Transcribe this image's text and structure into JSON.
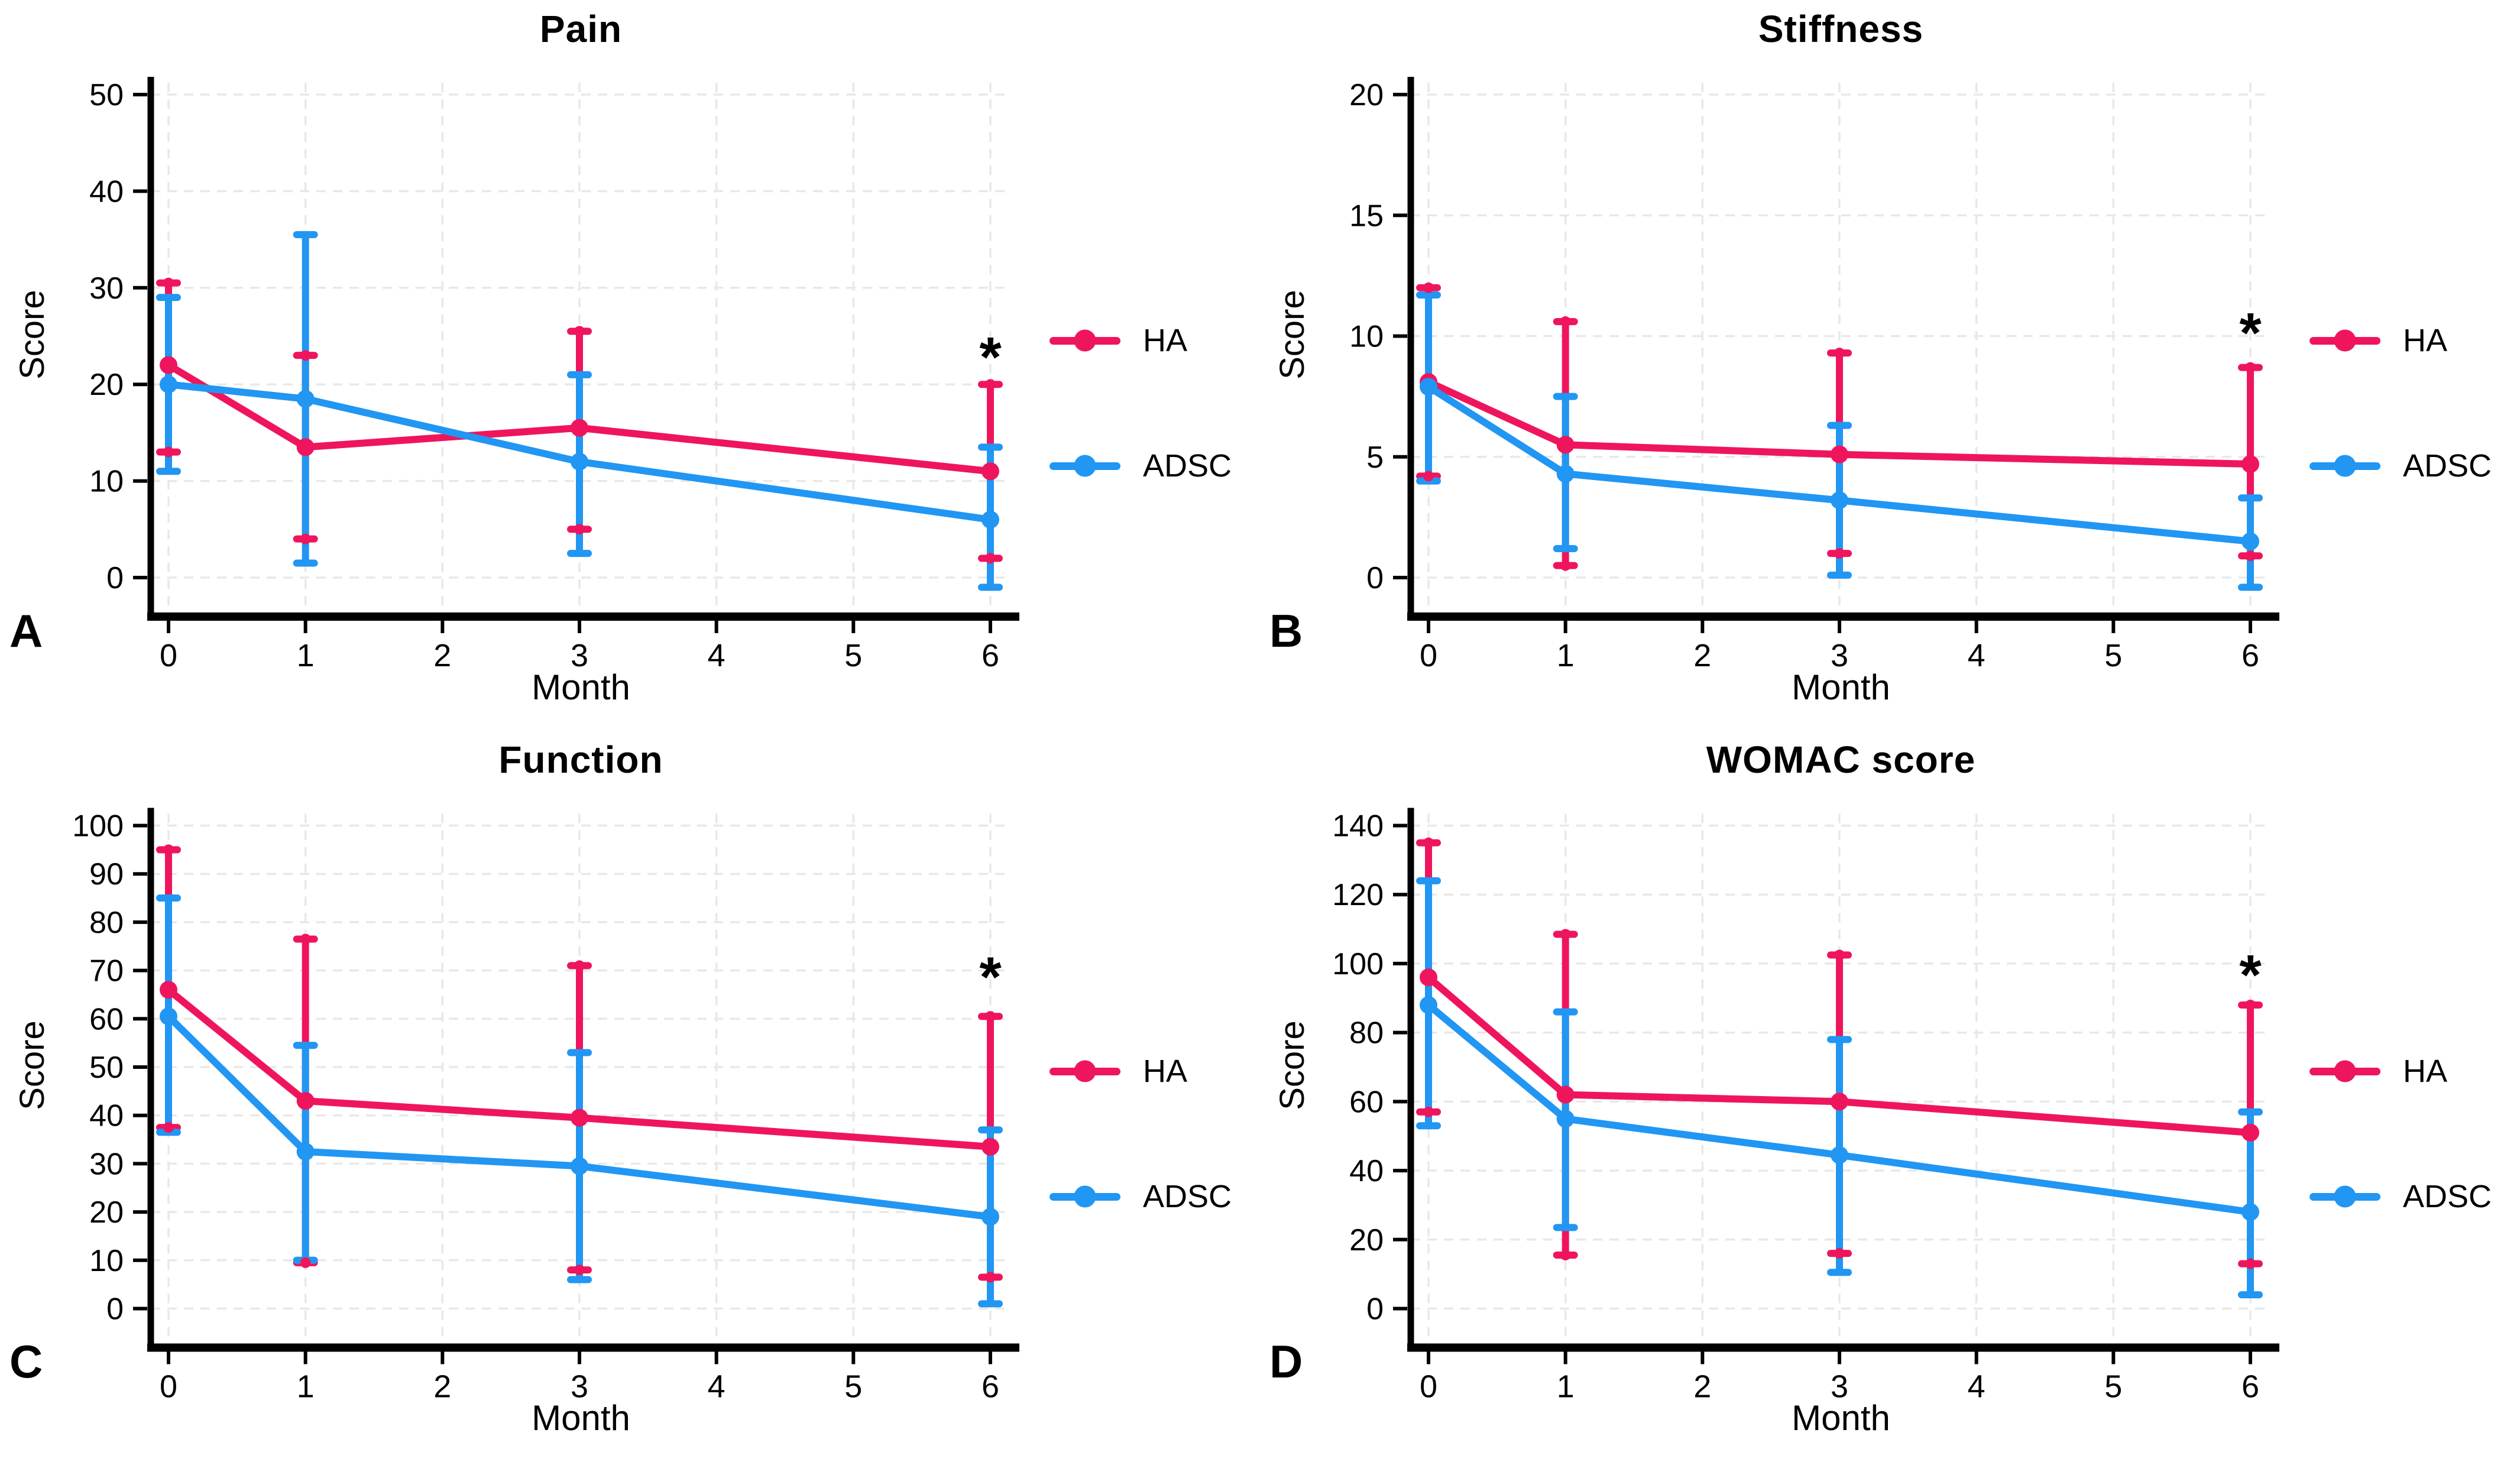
{
  "style": {
    "ha_color": "#EF155D",
    "adsc_color": "#2196F3",
    "asterisk_color": "#FA5214",
    "grid_color": "#E8E8E8",
    "axis_color": "#000000",
    "background": "#FFFFFF"
  },
  "chart_data": [
    {
      "type": "line",
      "letter": "A",
      "title": "Pain",
      "xlabel": "Month",
      "ylabel": "Score",
      "x": [
        0,
        1,
        3,
        6
      ],
      "x_ticks": [
        0,
        1,
        2,
        3,
        4,
        5,
        6
      ],
      "y_ticks": [
        0,
        10,
        20,
        30,
        40,
        50
      ],
      "ylim": [
        0,
        50
      ],
      "grid": true,
      "legend_position": "right",
      "significance": {
        "x": 6,
        "y": 24,
        "label": "*"
      },
      "series": [
        {
          "name": "HA",
          "color": "#EF155D",
          "means": [
            22,
            13.5,
            15.5,
            11
          ],
          "lower": [
            13,
            4,
            5,
            2
          ],
          "upper": [
            30.5,
            23,
            25.5,
            20
          ]
        },
        {
          "name": "ADSC",
          "color": "#2196F3",
          "means": [
            20,
            18.5,
            12,
            6
          ],
          "lower": [
            11,
            1.5,
            2.5,
            -1
          ],
          "upper": [
            29,
            35.5,
            21,
            13.5
          ]
        }
      ]
    },
    {
      "type": "line",
      "letter": "B",
      "title": "Stiffness",
      "xlabel": "Month",
      "ylabel": "Score",
      "x": [
        0,
        1,
        3,
        6
      ],
      "x_ticks": [
        0,
        1,
        2,
        3,
        4,
        5,
        6
      ],
      "y_ticks": [
        0,
        5,
        10,
        15,
        20
      ],
      "ylim": [
        0,
        20
      ],
      "grid": true,
      "legend_position": "right",
      "significance": {
        "x": 6,
        "y": 10.6,
        "label": "*"
      },
      "series": [
        {
          "name": "HA",
          "color": "#EF155D",
          "means": [
            8.1,
            5.5,
            5.1,
            4.7
          ],
          "lower": [
            4.2,
            0.5,
            1,
            0.9
          ],
          "upper": [
            12,
            10.6,
            9.3,
            8.7
          ]
        },
        {
          "name": "ADSC",
          "color": "#2196F3",
          "means": [
            7.9,
            4.3,
            3.2,
            1.5
          ],
          "lower": [
            4,
            1.2,
            0.1,
            -0.4
          ],
          "upper": [
            11.7,
            7.5,
            6.3,
            3.3
          ]
        }
      ]
    },
    {
      "type": "line",
      "letter": "C",
      "title": "Function",
      "xlabel": "Month",
      "ylabel": "Score",
      "x": [
        0,
        1,
        3,
        6
      ],
      "x_ticks": [
        0,
        1,
        2,
        3,
        4,
        5,
        6
      ],
      "y_ticks": [
        0,
        10,
        20,
        30,
        40,
        50,
        60,
        70,
        80,
        90,
        100
      ],
      "ylim": [
        0,
        100
      ],
      "grid": true,
      "legend_position": "right",
      "significance": {
        "x": 6,
        "y": 71,
        "label": "*"
      },
      "series": [
        {
          "name": "HA",
          "color": "#EF155D",
          "means": [
            66,
            43,
            39.5,
            33.5
          ],
          "lower": [
            37.5,
            9.5,
            8,
            6.5
          ],
          "upper": [
            95,
            76.5,
            71,
            60.5
          ]
        },
        {
          "name": "ADSC",
          "color": "#2196F3",
          "means": [
            60.5,
            32.5,
            29.5,
            19
          ],
          "lower": [
            36.5,
            10,
            6,
            1
          ],
          "upper": [
            85,
            54.5,
            53,
            37
          ]
        }
      ]
    },
    {
      "type": "line",
      "letter": "D",
      "title": "WOMAC score",
      "xlabel": "Month",
      "ylabel": "Score",
      "x": [
        0,
        1,
        3,
        6
      ],
      "x_ticks": [
        0,
        1,
        2,
        3,
        4,
        5,
        6
      ],
      "y_ticks": [
        0,
        20,
        40,
        60,
        80,
        100,
        120,
        140
      ],
      "ylim": [
        0,
        140
      ],
      "grid": true,
      "legend_position": "right",
      "significance": {
        "x": 6,
        "y": 100,
        "label": "*"
      },
      "series": [
        {
          "name": "HA",
          "color": "#EF155D",
          "means": [
            96,
            62,
            60,
            51
          ],
          "lower": [
            57,
            15.5,
            16,
            13
          ],
          "upper": [
            135,
            108.5,
            102.5,
            88
          ]
        },
        {
          "name": "ADSC",
          "color": "#2196F3",
          "means": [
            88,
            55,
            44.5,
            28
          ],
          "lower": [
            53,
            23.5,
            10.5,
            4
          ],
          "upper": [
            124,
            86,
            78,
            57
          ]
        }
      ]
    }
  ]
}
